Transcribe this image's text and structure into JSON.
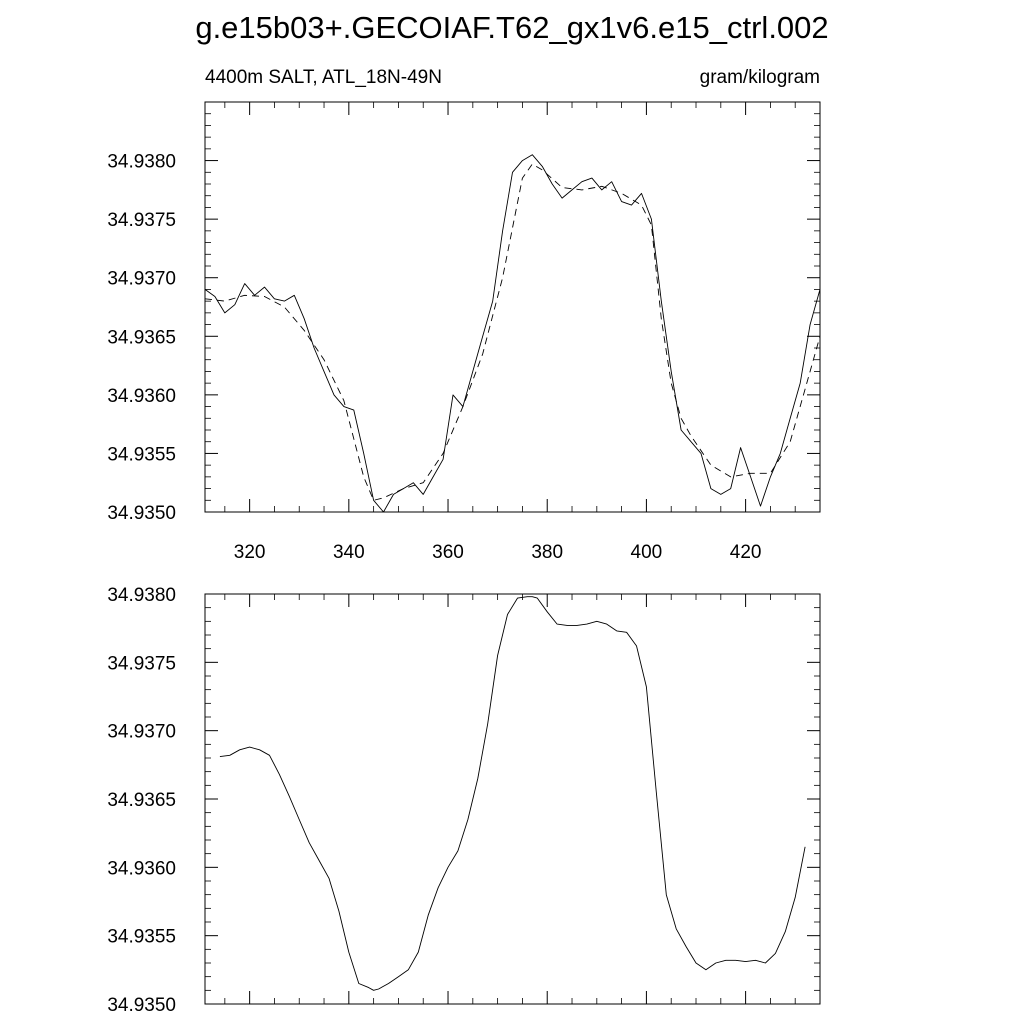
{
  "page": {
    "title": "g.e15b03+.GECOIAF.T62_gx1v6.e15_ctrl.002"
  },
  "chart_data": [
    {
      "type": "line",
      "title": "4400m SALT, ATL_18N-49N",
      "units": "gram/kilogram",
      "xlim": [
        311,
        435
      ],
      "ylim": [
        34.935,
        34.9385
      ],
      "xticks": [
        320,
        340,
        360,
        380,
        400,
        420
      ],
      "xticklabels": [
        "320",
        "340",
        "360",
        "380",
        "400",
        "420"
      ],
      "yticks": [
        34.935,
        34.9355,
        34.936,
        34.9365,
        34.937,
        34.9375,
        34.938
      ],
      "yticklabels": [
        "34.9350",
        "34.9355",
        "34.9360",
        "34.9365",
        "34.9370",
        "34.9375",
        "34.9380"
      ],
      "series": [
        {
          "style": "solid",
          "x": [
            311,
            313,
            315,
            317,
            319,
            321,
            323,
            325,
            327,
            329,
            331,
            333,
            335,
            337,
            339,
            341,
            343,
            345,
            347,
            349,
            351,
            353,
            355,
            357,
            359,
            361,
            363,
            365,
            367,
            369,
            371,
            373,
            375,
            377,
            379,
            381,
            383,
            385,
            387,
            389,
            391,
            393,
            395,
            397,
            399,
            401,
            403,
            405,
            407,
            409,
            411,
            413,
            415,
            417,
            419,
            421,
            423,
            425,
            427,
            429,
            431,
            433,
            435
          ],
          "y": [
            34.9369,
            34.93684,
            34.9367,
            34.93677,
            34.93695,
            34.93685,
            34.93692,
            34.93682,
            34.9368,
            34.93685,
            34.93665,
            34.9364,
            34.9362,
            34.936,
            34.9359,
            34.93587,
            34.9355,
            34.9351,
            34.935,
            34.93515,
            34.9352,
            34.93525,
            34.93515,
            34.9353,
            34.93545,
            34.936,
            34.9359,
            34.9362,
            34.9365,
            34.9368,
            34.9374,
            34.9379,
            34.938,
            34.93805,
            34.93795,
            34.9378,
            34.93768,
            34.93775,
            34.93782,
            34.93785,
            34.93775,
            34.93782,
            34.93765,
            34.93762,
            34.93772,
            34.9375,
            34.9368,
            34.9362,
            34.9357,
            34.9356,
            34.9355,
            34.9352,
            34.93515,
            34.9352,
            34.93555,
            34.9353,
            34.93505,
            34.9353,
            34.9355,
            34.9358,
            34.9361,
            34.9366,
            34.9369
          ]
        },
        {
          "style": "dashed",
          "x": [
            311,
            315,
            319,
            323,
            327,
            331,
            335,
            339,
            343,
            345,
            347,
            351,
            355,
            359,
            363,
            367,
            371,
            375,
            377,
            379,
            383,
            387,
            391,
            395,
            399,
            401,
            403,
            405,
            407,
            409,
            413,
            417,
            421,
            425,
            429,
            433,
            435
          ],
          "y": [
            34.93682,
            34.9368,
            34.93685,
            34.93684,
            34.93675,
            34.93655,
            34.9363,
            34.93595,
            34.9353,
            34.9351,
            34.93512,
            34.9352,
            34.93525,
            34.9355,
            34.9359,
            34.93635,
            34.937,
            34.93785,
            34.93797,
            34.93792,
            34.93777,
            34.93775,
            34.93778,
            34.93772,
            34.93762,
            34.93745,
            34.93665,
            34.9361,
            34.9358,
            34.93565,
            34.9354,
            34.9353,
            34.93533,
            34.93533,
            34.9356,
            34.9362,
            34.9365
          ]
        }
      ]
    },
    {
      "type": "line",
      "xlim": [
        311,
        435
      ],
      "ylim": [
        34.935,
        34.938
      ],
      "xticks": [
        320,
        340,
        360,
        380,
        400,
        420
      ],
      "yticks": [
        34.935,
        34.9355,
        34.936,
        34.9365,
        34.937,
        34.9375,
        34.938
      ],
      "yticklabels": [
        "34.9350",
        "34.9355",
        "34.9360",
        "34.9365",
        "34.9370",
        "34.9375",
        "34.9380"
      ],
      "series": [
        {
          "style": "solid",
          "x": [
            314,
            316,
            318,
            320,
            322,
            324,
            326,
            328,
            330,
            332,
            334,
            336,
            338,
            340,
            342,
            344,
            345,
            346,
            348,
            350,
            352,
            354,
            356,
            358,
            360,
            362,
            364,
            366,
            368,
            370,
            372,
            374,
            376,
            377,
            378,
            380,
            382,
            384,
            386,
            388,
            390,
            392,
            394,
            396,
            398,
            400,
            402,
            404,
            406,
            408,
            410,
            412,
            414,
            416,
            418,
            420,
            422,
            424,
            426,
            428,
            430,
            432
          ],
          "y": [
            34.93681,
            34.93682,
            34.93686,
            34.93688,
            34.93686,
            34.93682,
            34.93668,
            34.93652,
            34.93635,
            34.93618,
            34.93605,
            34.93592,
            34.93568,
            34.93538,
            34.93515,
            34.93512,
            34.9351,
            34.93511,
            34.93515,
            34.9352,
            34.93525,
            34.93538,
            34.93565,
            34.93585,
            34.936,
            34.93612,
            34.93635,
            34.93665,
            34.93705,
            34.93755,
            34.93785,
            34.93797,
            34.93798,
            34.93798,
            34.93797,
            34.93787,
            34.93778,
            34.93777,
            34.93777,
            34.93778,
            34.9378,
            34.93778,
            34.93773,
            34.93772,
            34.93762,
            34.93732,
            34.93655,
            34.9358,
            34.93555,
            34.93542,
            34.9353,
            34.93525,
            34.9353,
            34.93532,
            34.93532,
            34.93531,
            34.93532,
            34.9353,
            34.93537,
            34.93553,
            34.93578,
            34.93615
          ]
        }
      ]
    }
  ]
}
